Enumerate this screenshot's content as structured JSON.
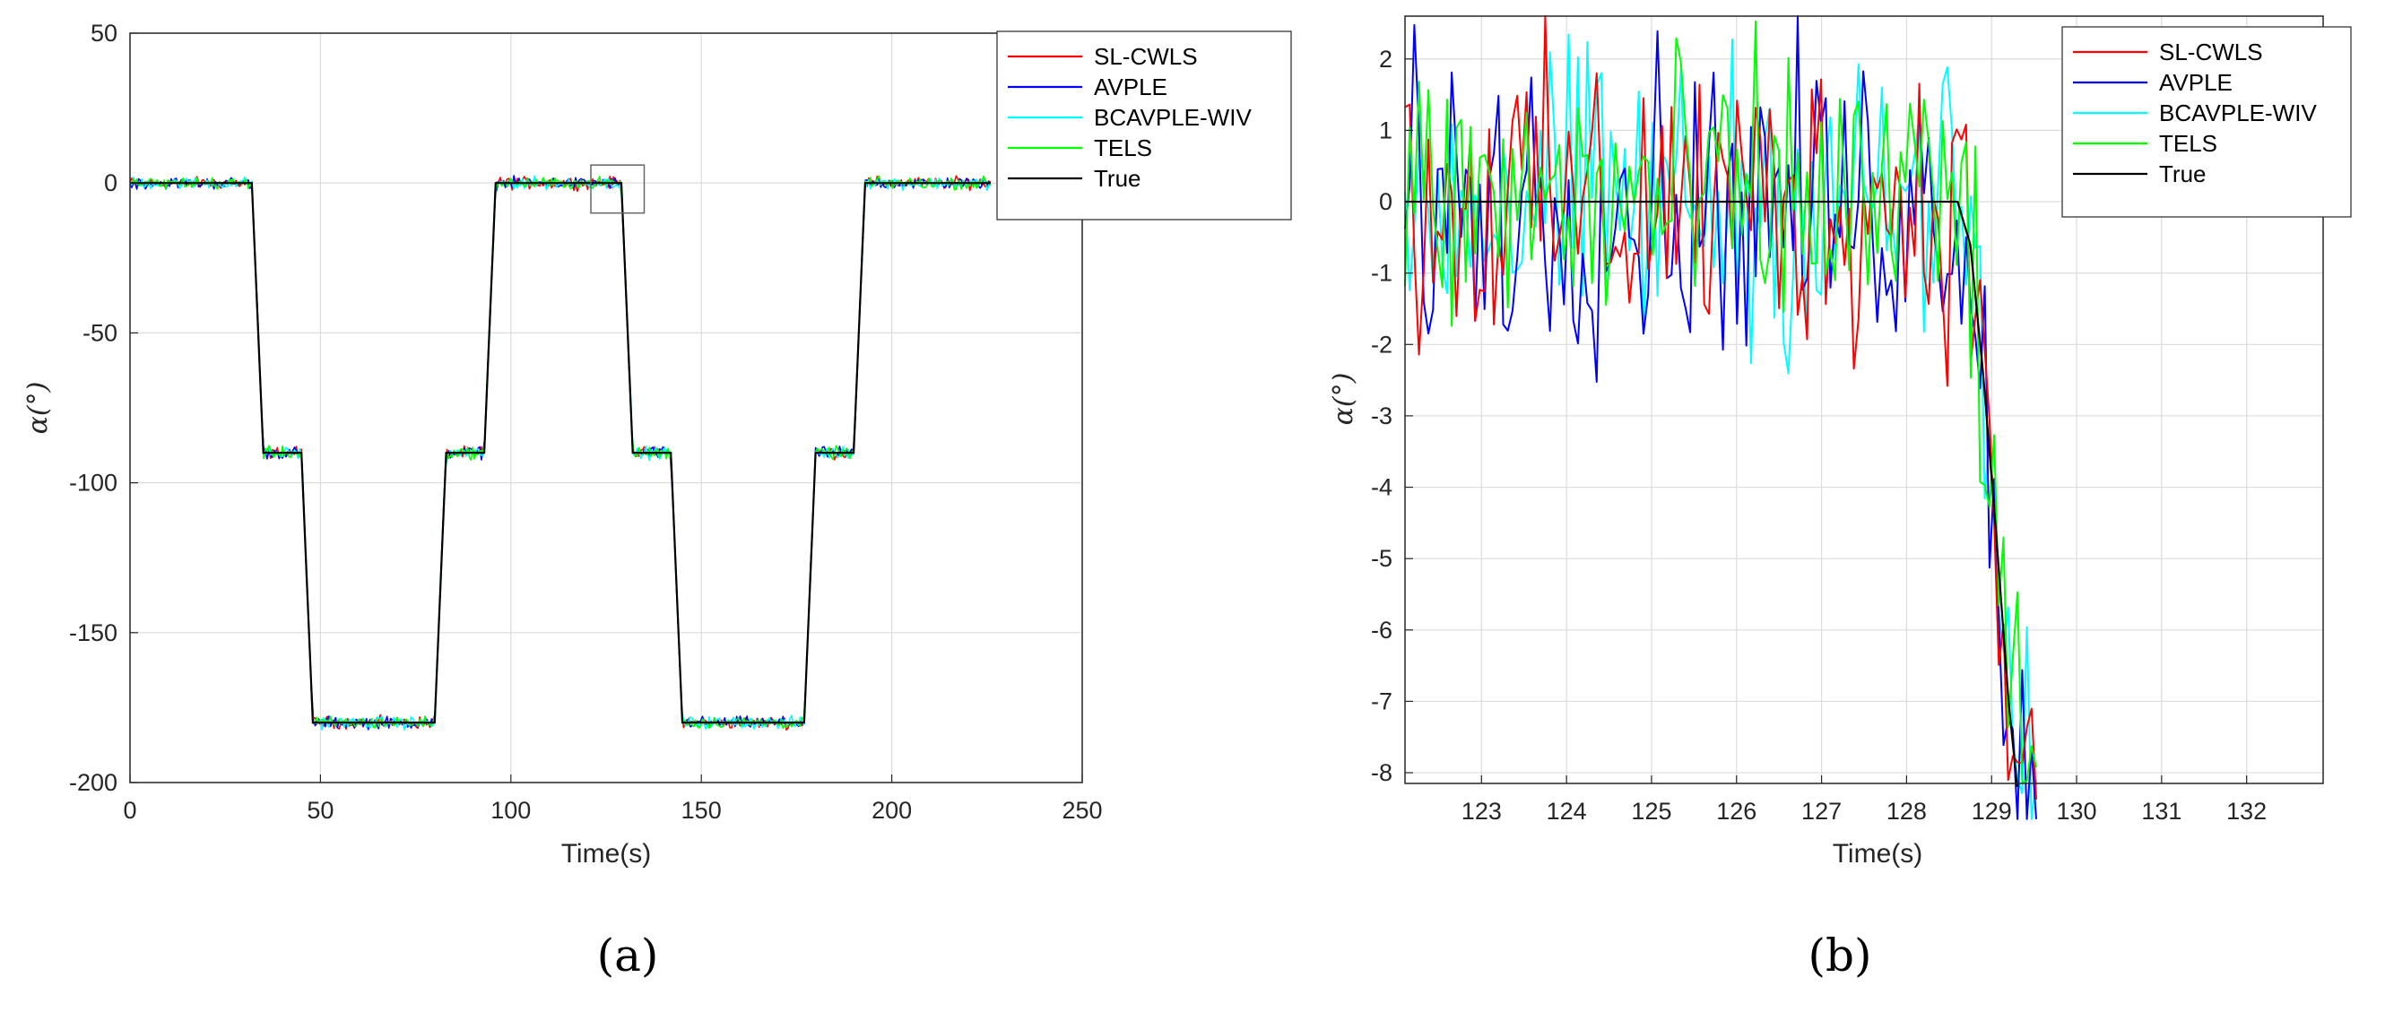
{
  "chart_data": [
    {
      "type": "line",
      "panel_label": "(a)",
      "xlabel": "Time(s)",
      "ylabel": "α(°)",
      "xlim": [
        0,
        250
      ],
      "ylim": [
        -200,
        50
      ],
      "xticks": [
        "0",
        "50",
        "100",
        "150",
        "200",
        "250"
      ],
      "yticks": [
        "50",
        "0",
        "-50",
        "-100",
        "-150",
        "-200"
      ],
      "grid": true,
      "legend_position": "top-right",
      "zoom_box": {
        "x": [
          121,
          135
        ],
        "y": [
          -10,
          6
        ]
      },
      "true_profile": {
        "x": [
          0,
          32,
          34,
          35,
          45,
          46,
          48,
          80,
          82,
          83,
          93,
          94,
          96,
          129,
          131,
          132,
          142,
          143,
          145,
          177,
          179,
          180,
          190,
          191,
          193,
          226
        ],
        "y": [
          0,
          0,
          -60,
          -90,
          -90,
          -120,
          -180,
          -180,
          -120,
          -90,
          -90,
          -60,
          0,
          0,
          -60,
          -90,
          -90,
          -120,
          -180,
          -180,
          -120,
          -90,
          -90,
          -60,
          0,
          0
        ]
      },
      "series": [
        {
          "name": "SL-CWLS",
          "color": "#ff0000"
        },
        {
          "name": "AVPLE",
          "color": "#0000ff"
        },
        {
          "name": "BCAVPLE-WIV",
          "color": "#00ffff"
        },
        {
          "name": "TELS",
          "color": "#00ff00"
        },
        {
          "name": "True",
          "color": "#000000"
        }
      ]
    },
    {
      "type": "line",
      "panel_label": "(b)",
      "xlabel": "Time(s)",
      "ylabel": "α(°)",
      "xlim": [
        122.1,
        132.9
      ],
      "ylim": [
        -8.15,
        2.6
      ],
      "xticks": [
        "123",
        "124",
        "125",
        "126",
        "127",
        "128",
        "129",
        "130",
        "131",
        "132"
      ],
      "yticks": [
        "2",
        "1",
        "0",
        "-1",
        "-2",
        "-3",
        "-4",
        "-5",
        "-6",
        "-7",
        "-8"
      ],
      "grid": true,
      "legend_position": "top-right",
      "true_profile": {
        "x": [
          122.1,
          128.6,
          128.75,
          128.9,
          129.05,
          129.2,
          129.3
        ],
        "y": [
          0,
          0,
          -0.6,
          -2.4,
          -4.6,
          -7.0,
          -8.2
        ]
      },
      "series": [
        {
          "name": "SL-CWLS",
          "color": "#ff0000"
        },
        {
          "name": "AVPLE",
          "color": "#0000ff"
        },
        {
          "name": "BCAVPLE-WIV",
          "color": "#00ffff"
        },
        {
          "name": "TELS",
          "color": "#00ff00"
        },
        {
          "name": "True",
          "color": "#000000"
        }
      ]
    }
  ]
}
